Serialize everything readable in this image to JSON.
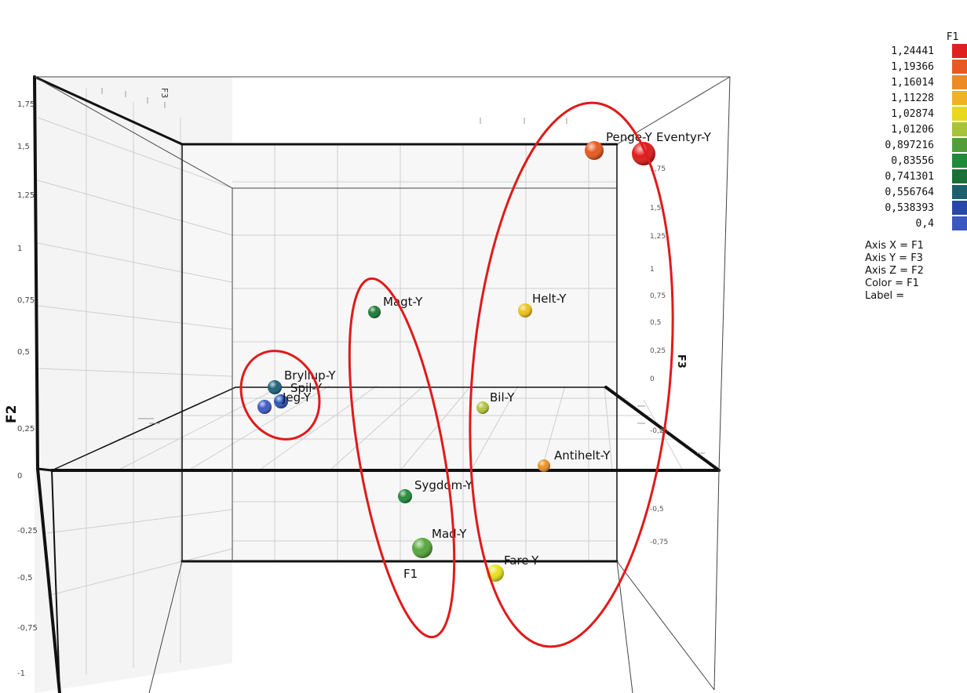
{
  "chart_data": {
    "type": "scatter",
    "title": "",
    "axis_labels": {
      "x": "F1",
      "y": "F3",
      "z": "F2"
    },
    "points": [
      {
        "label": "Penge-Y",
        "f1": 1.19366,
        "color": "#e8581e"
      },
      {
        "label": "Eventyr-Y",
        "f1": 1.24441,
        "color": "#e01818"
      },
      {
        "label": "Magt-Y",
        "f1": 0.741301,
        "color": "#1a7a33"
      },
      {
        "label": "Helt-Y",
        "f1": 1.11228,
        "color": "#f0c21a"
      },
      {
        "label": "Bryllup-Y",
        "f1": 0.556764,
        "color": "#1b5f7a"
      },
      {
        "label": "Spil-Y",
        "f1": 0.538393,
        "color": "#2a55b8"
      },
      {
        "label": "Jeg-Y",
        "f1": 0.4,
        "color": "#3b58c4"
      },
      {
        "label": "Bil-Y",
        "f1": 1.01206,
        "color": "#b5c43c"
      },
      {
        "label": "Antihelt-Y",
        "f1": 1.16014,
        "color": "#ec8f22"
      },
      {
        "label": "Sygdom-Y",
        "f1": 0.83556,
        "color": "#1f8a3a"
      },
      {
        "label": "Mad-Y",
        "f1": 0.897216,
        "color": "#55a83a"
      },
      {
        "label": "Fare-Y",
        "f1": 1.02874,
        "color": "#e8e21a"
      }
    ],
    "z_ticks": [
      "1,75",
      "1,5",
      "1,25",
      "1",
      "0,75",
      "0,5",
      "0,25",
      "0",
      "-0,25",
      "-0,5",
      "-0,75",
      "-1"
    ],
    "color_scale": {
      "variable": "F1",
      "stops": [
        {
          "value": "1,24441",
          "color": "#e02020"
        },
        {
          "value": "1,19366",
          "color": "#e85a24"
        },
        {
          "value": "1,16014",
          "color": "#ec8a26"
        },
        {
          "value": "1,11228",
          "color": "#f0b224"
        },
        {
          "value": "1,02874",
          "color": "#e8d81e"
        },
        {
          "value": "1,01206",
          "color": "#a8c23a"
        },
        {
          "value": "0,897216",
          "color": "#4f9e3a"
        },
        {
          "value": "0,83556",
          "color": "#1f8a38"
        },
        {
          "value": "0,741301",
          "color": "#1a7036"
        },
        {
          "value": "0,556764",
          "color": "#1e5f6e"
        },
        {
          "value": "0,538393",
          "color": "#2848a8"
        },
        {
          "value": "0,4",
          "color": "#3a58c0"
        }
      ]
    }
  },
  "axis_info": [
    "Axis X = F1",
    "Axis Y = F3",
    "Axis Z = F2",
    "Color = F1",
    "Label ="
  ],
  "annotation_color": "#e01a1a"
}
